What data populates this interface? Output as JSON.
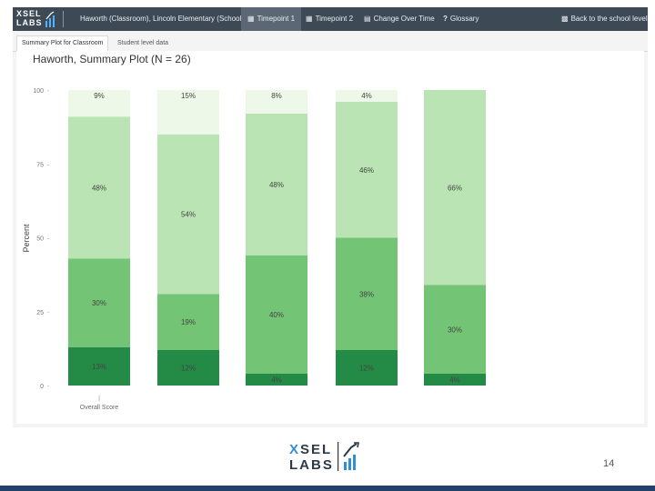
{
  "app": {
    "logo_line1": "XSEL",
    "logo_line2": "LABS"
  },
  "nav": {
    "class_school": "Haworth (Classroom), Lincoln Elementary (School)",
    "timepoint1": "Timepoint 1",
    "timepoint2": "Timepoint 2",
    "change_over_time": "Change Over Time",
    "glossary": "Glossary",
    "back": "Back to the school level"
  },
  "tabs": {
    "summary": "Summary Plot for Classroom",
    "student": "Student level data"
  },
  "chart_title": "Haworth, Summary Plot (N = 26)",
  "chart_data": {
    "type": "bar",
    "stacked": true,
    "title": "Haworth, Summary Plot (N = 26)",
    "xlabel": "",
    "ylabel": "Percent",
    "ylim": [
      0,
      100
    ],
    "yticks": [
      "0",
      "25",
      "50",
      "75",
      "100"
    ],
    "categories": [
      "Overall Score",
      "",
      "",
      "",
      ""
    ],
    "series": [
      {
        "name": "level1",
        "color": "#238b45",
        "values": [
          13,
          12,
          4,
          12,
          4
        ],
        "labels": [
          "13%",
          "12%",
          "4%",
          "12%",
          "4%"
        ]
      },
      {
        "name": "level2",
        "color": "#74c476",
        "values": [
          30,
          19,
          40,
          38,
          30
        ],
        "labels": [
          "30%",
          "19%",
          "40%",
          "38%",
          "30%"
        ]
      },
      {
        "name": "level3",
        "color": "#bae4b3",
        "values": [
          48,
          54,
          48,
          46,
          66
        ],
        "labels": [
          "48%",
          "54%",
          "48%",
          "46%",
          "66%"
        ]
      },
      {
        "name": "level4",
        "color": "#edf8e9",
        "values": [
          9,
          15,
          8,
          4,
          0
        ],
        "labels": [
          "9%",
          "15%",
          "8%",
          "4%",
          ""
        ]
      }
    ]
  },
  "page_number": "14"
}
